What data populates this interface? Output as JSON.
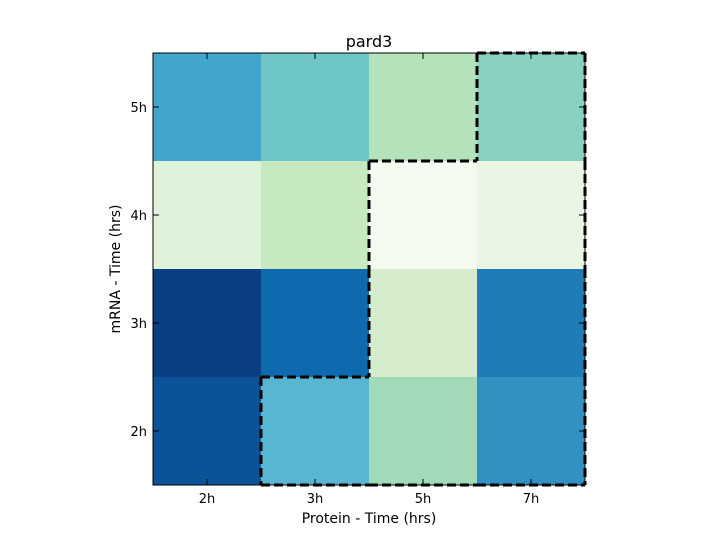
{
  "chart_data": {
    "type": "heatmap",
    "title": "pard3",
    "xlabel": "Protein  - Time (hrs)",
    "ylabel": "mRNA  - Time (hrs)",
    "x_categories": [
      "2h",
      "3h",
      "5h",
      "7h"
    ],
    "y_categories": [
      "2h",
      "3h",
      "4h",
      "5h"
    ],
    "rows": [
      {
        "y": "5h",
        "cells": [
          {
            "x": "2h",
            "color": "#42A5CE"
          },
          {
            "x": "3h",
            "color": "#6FC6C6"
          },
          {
            "x": "5h",
            "color": "#B4E2BA"
          },
          {
            "x": "7h",
            "color": "#89D2C1"
          }
        ]
      },
      {
        "y": "4h",
        "cells": [
          {
            "x": "2h",
            "color": "#DFF2DA"
          },
          {
            "x": "3h",
            "color": "#C7E9C0"
          },
          {
            "x": "5h",
            "color": "#F5FBF0"
          },
          {
            "x": "7h",
            "color": "#EAF6E3"
          }
        ]
      },
      {
        "y": "3h",
        "cells": [
          {
            "x": "2h",
            "color": "#0A3F83"
          },
          {
            "x": "3h",
            "color": "#0D6AAF"
          },
          {
            "x": "5h",
            "color": "#D5EDCC"
          },
          {
            "x": "7h",
            "color": "#1E7CB7"
          }
        ]
      },
      {
        "y": "2h",
        "cells": [
          {
            "x": "2h",
            "color": "#0A5396"
          },
          {
            "x": "3h",
            "color": "#58B6D2"
          },
          {
            "x": "5h",
            "color": "#A1DAB8"
          },
          {
            "x": "7h",
            "color": "#3191C2"
          }
        ]
      }
    ],
    "highlight_region": {
      "style": "dashed",
      "color": "#000000",
      "cells": [
        {
          "x": "7h",
          "y": "5h"
        },
        {
          "x": "5h",
          "y": "4h"
        },
        {
          "x": "7h",
          "y": "4h"
        },
        {
          "x": "5h",
          "y": "3h"
        },
        {
          "x": "7h",
          "y": "3h"
        },
        {
          "x": "3h",
          "y": "2h"
        },
        {
          "x": "5h",
          "y": "2h"
        },
        {
          "x": "7h",
          "y": "2h"
        }
      ]
    }
  }
}
